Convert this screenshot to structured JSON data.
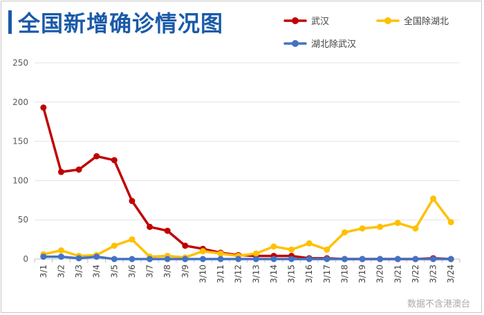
{
  "header": {
    "title": "全国新增确诊情况图"
  },
  "footnote": "数据不含港澳台",
  "chart_data": {
    "type": "line",
    "title": "全国新增确诊情况图",
    "xlabel": "",
    "ylabel": "",
    "ylim": [
      0,
      250
    ],
    "yticks": [
      0,
      50,
      100,
      150,
      200,
      250
    ],
    "grid": true,
    "legend_position": "top-right",
    "x": [
      "3/1",
      "3/2",
      "3/3",
      "3/4",
      "3/5",
      "3/6",
      "3/7",
      "3/8",
      "3/9",
      "3/10",
      "3/11",
      "3/12",
      "3/13",
      "3/14",
      "3/15",
      "3/16",
      "3/17",
      "3/18",
      "3/19",
      "3/20",
      "3/21",
      "3/22",
      "3/23",
      "3/24"
    ],
    "series": [
      {
        "name": "武汉",
        "color": "#c00000",
        "values": [
          193,
          111,
          114,
          131,
          126,
          74,
          41,
          36,
          17,
          13,
          8,
          5,
          4,
          4,
          4,
          1,
          1,
          0,
          0,
          0,
          0,
          0,
          1,
          0
        ]
      },
      {
        "name": "全国除湖北",
        "color": "#ffc000",
        "values": [
          6,
          11,
          4,
          5,
          17,
          25,
          3,
          4,
          2,
          10,
          7,
          4,
          7,
          16,
          12,
          20,
          12,
          34,
          39,
          41,
          46,
          39,
          77,
          47
        ]
      },
      {
        "name": "湖北除武汉",
        "color": "#4472c4",
        "values": [
          3,
          3,
          1,
          3,
          0,
          0,
          0,
          0,
          0,
          0,
          0,
          0,
          0,
          0,
          0,
          0,
          0,
          0,
          0,
          0,
          0,
          0,
          0,
          0
        ]
      }
    ]
  }
}
